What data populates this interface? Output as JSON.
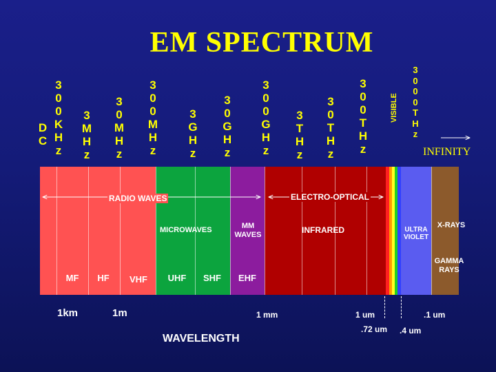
{
  "title": "EM SPECTRUM",
  "frequency_labels": {
    "dc": "DC",
    "khz300": "300KHz",
    "mhz3": "3MHz",
    "mhz30": "30MHz",
    "mhz300": "300MHz",
    "ghz3": "3GHz",
    "ghz30": "30GHz",
    "ghz300": "300GHz",
    "thz3": "3THz",
    "thz30": "30THz",
    "thz300": "300THz",
    "thz3000": "3000THz",
    "visible": "VISIBLE",
    "infinity": "INFINITY"
  },
  "regions": {
    "radio_waves": "RADIO WAVES",
    "electro_optical": "ELECTRO-OPTICAL",
    "microwaves": "MICROWAVES",
    "mm_waves": "MM\nWAVES",
    "infrared": "INFRARED",
    "ultra_violet": "ULTRA\nVIOLET",
    "x_rays": "X-RAYS",
    "gamma_rays": "GAMMA\nRAYS"
  },
  "bands": {
    "mf": "MF",
    "hf": "HF",
    "vhf": "VHF",
    "uhf": "UHF",
    "shf": "SHF",
    "ehf": "EHF"
  },
  "wavelengths": {
    "km1": "1km",
    "m1": "1m",
    "mm1": "1 mm",
    "um1": "1 um",
    "um072": ".72 um",
    "um04": ".4 um",
    "um01": ".1 um"
  },
  "axis_label": "WAVELENGTH",
  "colors": {
    "radio": "#ff5050",
    "microwave": "#0aa23c",
    "mm_waves": "#8b1a9c",
    "infrared": "#b00000",
    "ultraviolet": "#5a5cf0",
    "xray": "#8a5a2a",
    "title": "#ffff00",
    "background": "#161d80"
  }
}
